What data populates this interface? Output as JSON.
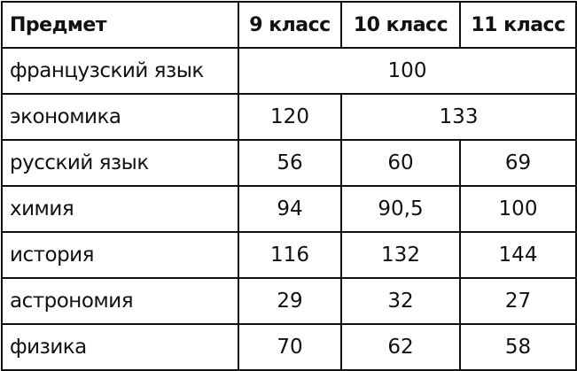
{
  "headers": [
    "Предмет",
    "9 класс",
    "10 класс",
    "11 класс"
  ],
  "rows": [
    {
      "subject": "французский язык",
      "merged_all": "100"
    },
    {
      "subject": "экономика",
      "g9": "120",
      "merged_10_11": "133"
    },
    {
      "subject": "русский язык",
      "g9": "56",
      "g10": "60",
      "g11": "69"
    },
    {
      "subject": "химия",
      "g9": "94",
      "g10": "90,5",
      "g11": "100"
    },
    {
      "subject": "история",
      "g9": "116",
      "g10": "132",
      "g11": "144"
    },
    {
      "subject": "астрономия",
      "g9": "29",
      "g10": "32",
      "g11": "27"
    },
    {
      "subject": "физика",
      "g9": "70",
      "g10": "62",
      "g11": "58"
    }
  ]
}
